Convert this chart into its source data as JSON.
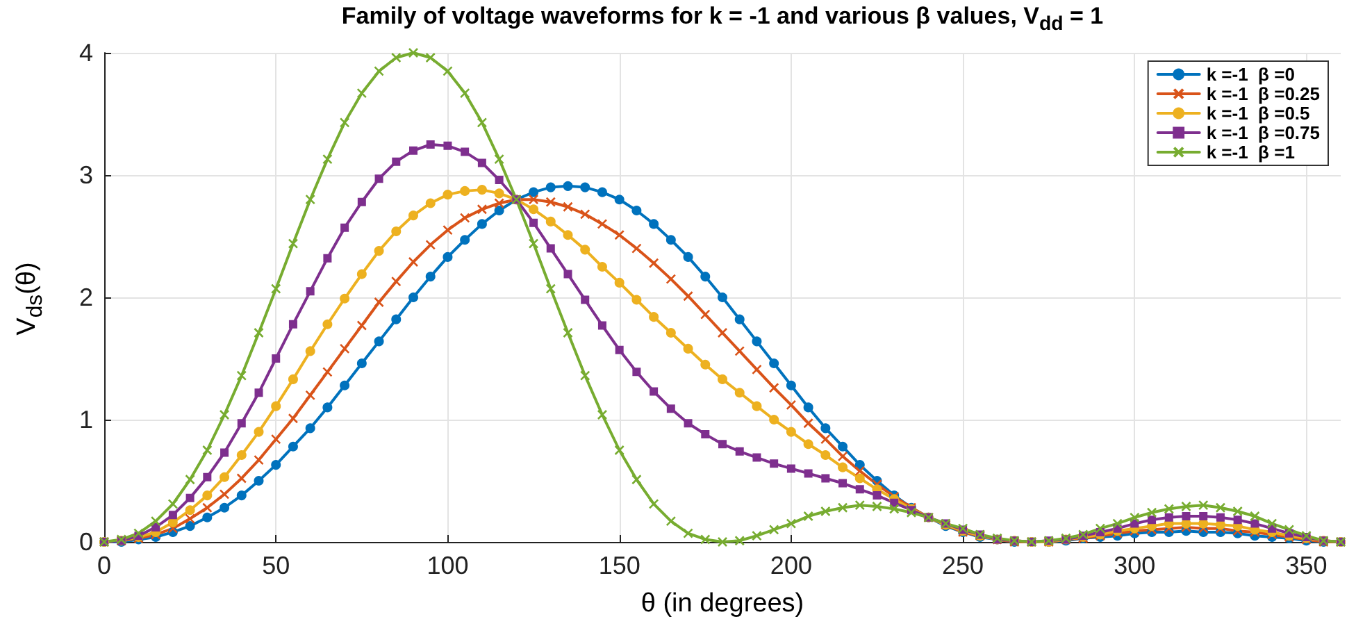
{
  "chart_data": {
    "type": "line",
    "title": "Family of voltage waveforms for k = -1  and various β values, V$_{dd}$ = 1",
    "xlabel": "θ (in degrees)",
    "ylabel": "V$_{ds}$(θ)",
    "x": [
      0,
      5,
      10,
      15,
      20,
      25,
      30,
      35,
      40,
      45,
      50,
      55,
      60,
      65,
      70,
      75,
      80,
      85,
      90,
      95,
      100,
      105,
      110,
      115,
      120,
      125,
      130,
      135,
      140,
      145,
      150,
      155,
      160,
      165,
      170,
      175,
      180,
      185,
      190,
      195,
      200,
      205,
      210,
      215,
      220,
      225,
      230,
      235,
      240,
      245,
      250,
      255,
      260,
      265,
      270,
      275,
      280,
      285,
      290,
      295,
      300,
      305,
      310,
      315,
      320,
      325,
      330,
      335,
      340,
      345,
      350,
      355,
      360
    ],
    "series": [
      {
        "name": "k =-1  β =0",
        "color": "#0072bd",
        "marker": "circle",
        "values": [
          0,
          0,
          0.02,
          0.04,
          0.08,
          0.13,
          0.2,
          0.28,
          0.38,
          0.5,
          0.63,
          0.78,
          0.93,
          1.1,
          1.28,
          1.46,
          1.64,
          1.82,
          2,
          2.17,
          2.33,
          2.47,
          2.6,
          2.71,
          2.8,
          2.86,
          2.9,
          2.91,
          2.9,
          2.86,
          2.8,
          2.71,
          2.6,
          2.47,
          2.33,
          2.17,
          2,
          1.82,
          1.64,
          1.46,
          1.28,
          1.1,
          0.93,
          0.78,
          0.63,
          0.5,
          0.38,
          0.28,
          0.2,
          0.13,
          0.08,
          0.04,
          0.02,
          0,
          0,
          0,
          0.01,
          0.03,
          0.04,
          0.05,
          0.07,
          0.08,
          0.08,
          0.09,
          0.08,
          0.08,
          0.07,
          0.05,
          0.04,
          0.03,
          0.01,
          0,
          0
        ]
      },
      {
        "name": "k =-1  β =0.25",
        "color": "#d95319",
        "marker": "cross",
        "values": [
          0,
          0.01,
          0.03,
          0.06,
          0.11,
          0.19,
          0.28,
          0.39,
          0.52,
          0.67,
          0.84,
          1.01,
          1.2,
          1.39,
          1.58,
          1.77,
          1.96,
          2.13,
          2.29,
          2.43,
          2.55,
          2.65,
          2.72,
          2.77,
          2.8,
          2.8,
          2.78,
          2.74,
          2.68,
          2.6,
          2.51,
          2.4,
          2.28,
          2.15,
          2.01,
          1.86,
          1.71,
          1.56,
          1.41,
          1.26,
          1.12,
          0.97,
          0.84,
          0.7,
          0.58,
          0.47,
          0.37,
          0.28,
          0.2,
          0.14,
          0.08,
          0.05,
          0.02,
          0,
          0,
          0,
          0.02,
          0.03,
          0.05,
          0.07,
          0.09,
          0.1,
          0.11,
          0.12,
          0.11,
          0.11,
          0.09,
          0.08,
          0.06,
          0.04,
          0.02,
          0,
          0
        ]
      },
      {
        "name": "k =-1  β =0.5",
        "color": "#edb120",
        "marker": "circle",
        "values": [
          0,
          0.01,
          0.04,
          0.08,
          0.16,
          0.26,
          0.38,
          0.53,
          0.71,
          0.9,
          1.11,
          1.33,
          1.56,
          1.78,
          1.99,
          2.19,
          2.38,
          2.54,
          2.67,
          2.77,
          2.84,
          2.87,
          2.88,
          2.85,
          2.8,
          2.72,
          2.62,
          2.51,
          2.39,
          2.25,
          2.12,
          1.98,
          1.84,
          1.71,
          1.58,
          1.45,
          1.33,
          1.22,
          1.11,
          1,
          0.9,
          0.8,
          0.71,
          0.61,
          0.52,
          0.43,
          0.35,
          0.27,
          0.2,
          0.14,
          0.09,
          0.05,
          0.02,
          0.01,
          0,
          0,
          0.02,
          0.04,
          0.06,
          0.09,
          0.11,
          0.13,
          0.15,
          0.15,
          0.15,
          0.14,
          0.13,
          0.1,
          0.08,
          0.05,
          0.03,
          0.01,
          0
        ]
      },
      {
        "name": "k =-1  β =0.75",
        "color": "#7e2f8e",
        "marker": "square",
        "values": [
          0,
          0.01,
          0.05,
          0.12,
          0.22,
          0.36,
          0.53,
          0.73,
          0.97,
          1.22,
          1.5,
          1.78,
          2.05,
          2.32,
          2.57,
          2.78,
          2.97,
          3.11,
          3.2,
          3.25,
          3.24,
          3.19,
          3.1,
          2.96,
          2.8,
          2.61,
          2.4,
          2.19,
          1.98,
          1.77,
          1.57,
          1.39,
          1.23,
          1.09,
          0.97,
          0.88,
          0.8,
          0.74,
          0.69,
          0.64,
          0.6,
          0.56,
          0.52,
          0.48,
          0.43,
          0.38,
          0.32,
          0.26,
          0.2,
          0.15,
          0.1,
          0.06,
          0.02,
          0.01,
          0,
          0.01,
          0.02,
          0.05,
          0.08,
          0.11,
          0.15,
          0.18,
          0.2,
          0.21,
          0.21,
          0.2,
          0.18,
          0.15,
          0.11,
          0.07,
          0.04,
          0.01,
          0
        ]
      },
      {
        "name": "k =-1  β =1",
        "color": "#77ac30",
        "marker": "cross",
        "values": [
          0,
          0.02,
          0.07,
          0.17,
          0.31,
          0.51,
          0.75,
          1.04,
          1.36,
          1.71,
          2.07,
          2.44,
          2.8,
          3.13,
          3.43,
          3.67,
          3.85,
          3.96,
          4,
          3.96,
          3.85,
          3.67,
          3.43,
          3.13,
          2.8,
          2.44,
          2.07,
          1.71,
          1.36,
          1.04,
          0.75,
          0.51,
          0.31,
          0.17,
          0.07,
          0.02,
          0,
          0.01,
          0.05,
          0.1,
          0.15,
          0.21,
          0.25,
          0.28,
          0.3,
          0.29,
          0.27,
          0.24,
          0.2,
          0.15,
          0.11,
          0.06,
          0.03,
          0.01,
          0,
          0.01,
          0.03,
          0.06,
          0.11,
          0.15,
          0.2,
          0.24,
          0.27,
          0.29,
          0.3,
          0.28,
          0.25,
          0.21,
          0.15,
          0.1,
          0.05,
          0.01,
          0
        ]
      }
    ],
    "xlim": [
      0,
      360
    ],
    "xticks": [
      0,
      50,
      100,
      150,
      200,
      250,
      300,
      350
    ],
    "ylim": [
      0,
      4
    ],
    "yticks": [
      0,
      1,
      2,
      3,
      4
    ],
    "grid": true,
    "legend": "top right",
    "line_style": "solid"
  }
}
